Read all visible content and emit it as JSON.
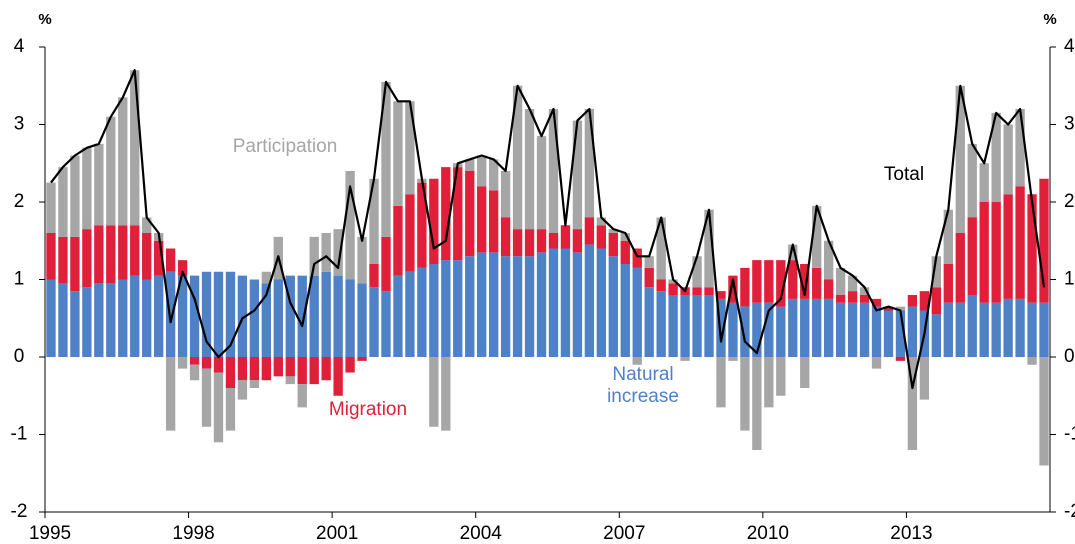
{
  "chart_data": {
    "type": "bar",
    "stacked": true,
    "ylabel": "%",
    "y2label": "%",
    "categories": [
      "1995",
      null,
      null,
      null,
      null,
      null,
      null,
      null,
      null,
      null,
      null,
      null,
      "1998",
      null,
      null,
      null,
      null,
      null,
      null,
      null,
      null,
      null,
      null,
      null,
      "2001",
      null,
      null,
      null,
      null,
      null,
      null,
      null,
      null,
      null,
      null,
      null,
      "2004",
      null,
      null,
      null,
      null,
      null,
      null,
      null,
      null,
      null,
      null,
      null,
      "2007",
      null,
      null,
      null,
      null,
      null,
      null,
      null,
      null,
      null,
      null,
      null,
      "2010",
      null,
      null,
      null,
      null,
      null,
      null,
      null,
      null,
      null,
      null,
      null,
      "2013",
      null,
      null,
      null,
      null,
      null,
      null,
      null,
      null,
      null,
      null,
      null
    ],
    "ylim": [
      -2,
      4
    ],
    "yticks": [
      -2,
      -1,
      0,
      1,
      2,
      3,
      4
    ],
    "y2lim": [
      -2,
      4
    ],
    "y2ticks": [
      -2,
      -1,
      0,
      1,
      2,
      3,
      4
    ],
    "series": [
      {
        "name": "Natural increase",
        "color": "#4f81c7",
        "values": [
          1.0,
          0.95,
          0.85,
          0.9,
          0.95,
          0.95,
          1.0,
          1.05,
          1.0,
          1.05,
          1.1,
          1.05,
          1.05,
          1.1,
          1.1,
          1.1,
          1.05,
          1.0,
          0.95,
          1.0,
          1.05,
          1.05,
          1.05,
          1.1,
          1.05,
          1.0,
          0.95,
          0.9,
          0.85,
          1.05,
          1.1,
          1.15,
          1.2,
          1.25,
          1.25,
          1.3,
          1.35,
          1.35,
          1.3,
          1.3,
          1.3,
          1.35,
          1.4,
          1.4,
          1.35,
          1.45,
          1.4,
          1.3,
          1.2,
          1.15,
          0.9,
          0.85,
          0.8,
          0.8,
          0.8,
          0.8,
          0.75,
          0.7,
          0.65,
          0.7,
          0.7,
          0.65,
          0.75,
          0.75,
          0.75,
          0.75,
          0.7,
          0.7,
          0.7,
          0.65,
          0.6,
          0.6,
          0.65,
          0.6,
          0.55,
          0.7,
          0.7,
          0.8,
          0.7,
          0.7,
          0.75,
          0.75,
          0.7,
          0.7
        ]
      },
      {
        "name": "Migration",
        "color": "#e0203a",
        "values": [
          0.6,
          0.6,
          0.7,
          0.75,
          0.75,
          0.75,
          0.7,
          0.65,
          0.6,
          0.45,
          0.3,
          0.2,
          -0.1,
          -0.15,
          -0.2,
          -0.4,
          -0.3,
          -0.3,
          -0.3,
          -0.25,
          -0.25,
          -0.35,
          -0.35,
          -0.3,
          -0.5,
          -0.2,
          -0.05,
          0.3,
          0.7,
          0.9,
          1.0,
          1.1,
          1.1,
          1.2,
          1.2,
          1.1,
          0.85,
          0.8,
          0.5,
          0.35,
          0.35,
          0.3,
          0.2,
          0.3,
          0.3,
          0.35,
          0.3,
          0.3,
          0.3,
          0.25,
          0.25,
          0.15,
          0.15,
          0.1,
          0.1,
          0.1,
          0.1,
          0.35,
          0.5,
          0.55,
          0.55,
          0.6,
          0.5,
          0.45,
          0.4,
          0.25,
          0.1,
          0.15,
          0.1,
          0.1,
          0.05,
          -0.05,
          0.15,
          0.25,
          0.35,
          0.5,
          0.9,
          1.0,
          1.3,
          1.3,
          1.35,
          1.45,
          1.4,
          1.6
        ]
      },
      {
        "name": "Participation",
        "color": "#a6a6a6",
        "values": [
          0.65,
          0.9,
          1.05,
          1.05,
          1.05,
          1.4,
          1.65,
          2.0,
          0.2,
          0.1,
          -0.95,
          -0.15,
          -0.2,
          -0.75,
          -0.9,
          -0.55,
          -0.25,
          -0.1,
          0.15,
          0.55,
          -0.1,
          -0.3,
          0.5,
          0.5,
          0.6,
          1.4,
          0.6,
          1.1,
          2.0,
          1.35,
          1.2,
          0.05,
          -0.9,
          -0.95,
          0.05,
          0.15,
          0.4,
          0.4,
          0.6,
          1.85,
          1.55,
          1.2,
          1.6,
          0.0,
          1.4,
          1.4,
          0.1,
          0.05,
          0.1,
          -0.1,
          0.15,
          0.8,
          0.05,
          -0.05,
          0.4,
          1.0,
          -0.65,
          -0.05,
          -0.95,
          -1.2,
          -0.65,
          -0.5,
          0.2,
          -0.4,
          0.8,
          0.5,
          0.35,
          0.2,
          0.1,
          -0.15,
          0.0,
          0.05,
          -1.2,
          -0.55,
          0.4,
          0.7,
          1.9,
          0.95,
          0.5,
          1.15,
          0.9,
          1.0,
          -0.1,
          -1.4
        ]
      },
      {
        "name": "Total",
        "type": "line",
        "color": "#000000",
        "values": [
          2.25,
          2.45,
          2.6,
          2.7,
          2.75,
          3.1,
          3.35,
          3.7,
          1.8,
          1.6,
          0.45,
          1.1,
          0.75,
          0.2,
          0.0,
          0.15,
          0.5,
          0.6,
          0.8,
          1.3,
          0.7,
          0.4,
          1.2,
          1.3,
          1.15,
          2.2,
          1.5,
          2.3,
          3.55,
          3.3,
          3.3,
          2.3,
          1.4,
          1.5,
          2.5,
          2.55,
          2.6,
          2.55,
          2.4,
          3.5,
          3.2,
          2.85,
          3.2,
          1.7,
          3.05,
          3.2,
          1.8,
          1.65,
          1.6,
          1.3,
          1.3,
          1.8,
          1.0,
          0.85,
          1.3,
          1.9,
          0.2,
          1.0,
          0.2,
          0.05,
          0.6,
          0.75,
          1.45,
          0.8,
          1.95,
          1.5,
          1.15,
          1.05,
          0.9,
          0.6,
          0.65,
          0.6,
          -0.4,
          0.3,
          1.3,
          1.9,
          3.5,
          2.75,
          2.5,
          3.15,
          3.0,
          3.2,
          2.0,
          0.9
        ]
      }
    ]
  }
}
